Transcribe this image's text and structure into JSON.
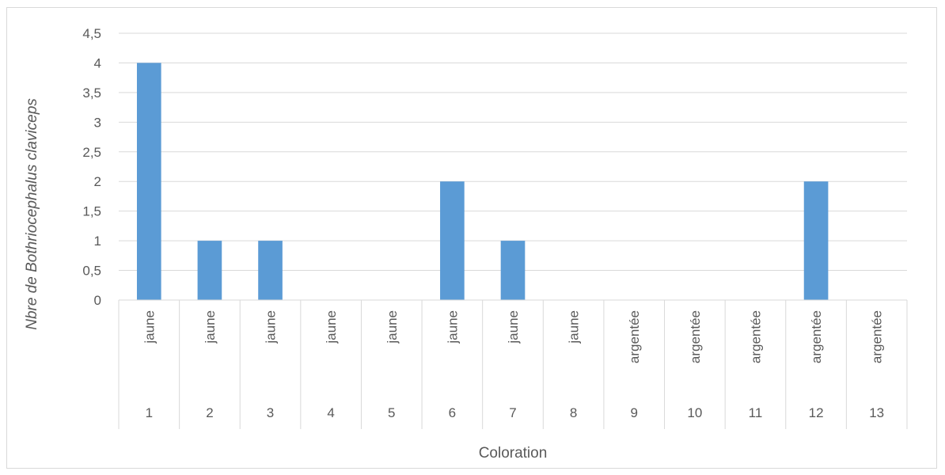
{
  "chart_data": {
    "type": "bar",
    "title": "",
    "xlabel": "Coloration",
    "ylabel": "Nbre de Bothriocephalus claviceps",
    "ylim": [
      0,
      4.5
    ],
    "y_tick_step": 0.5,
    "y_tick_labels": [
      "0",
      "0,5",
      "1",
      "1,5",
      "2",
      "2,5",
      "3",
      "3,5",
      "4",
      "4,5"
    ],
    "grid": true,
    "legend": "none",
    "bar_color": "#5b9bd5",
    "categories": [
      {
        "id": "1",
        "group": "jaune"
      },
      {
        "id": "2",
        "group": "jaune"
      },
      {
        "id": "3",
        "group": "jaune"
      },
      {
        "id": "4",
        "group": "jaune"
      },
      {
        "id": "5",
        "group": "jaune"
      },
      {
        "id": "6",
        "group": "jaune"
      },
      {
        "id": "7",
        "group": "jaune"
      },
      {
        "id": "8",
        "group": "jaune"
      },
      {
        "id": "9",
        "group": "argentée"
      },
      {
        "id": "10",
        "group": "argentée"
      },
      {
        "id": "11",
        "group": "argentée"
      },
      {
        "id": "12",
        "group": "argentée"
      },
      {
        "id": "13",
        "group": "argentée"
      }
    ],
    "values": [
      4,
      1,
      1,
      0,
      0,
      2,
      1,
      0,
      0,
      0,
      0,
      2,
      0
    ]
  }
}
